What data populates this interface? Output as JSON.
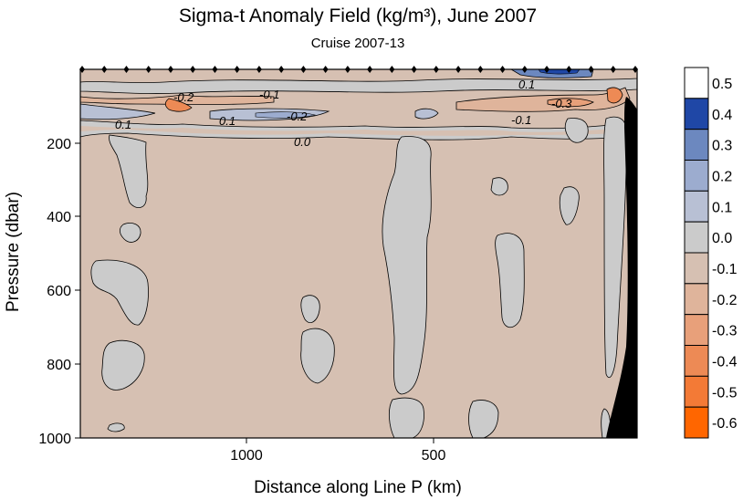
{
  "chart_data": {
    "type": "heatmap",
    "title": "Sigma-t Anomaly Field  (kg/m³),  June 2007",
    "subtitle": "Cruise 2007-13",
    "xlabel": "Distance along Line P  (km)",
    "ylabel": "Pressure  (dbar)",
    "x_ticks": [
      "1000",
      "500"
    ],
    "y_ticks": [
      "200",
      "400",
      "600",
      "800",
      "1000"
    ],
    "ylim": [
      0,
      1000
    ],
    "y_inverted": true,
    "colorbar": {
      "levels": [
        "0.5",
        "0.4",
        "0.3",
        "0.2",
        "0.1",
        "0.0",
        "-0.1",
        "-0.2",
        "-0.3",
        "-0.4",
        "-0.5",
        "-0.6"
      ],
      "colors": [
        "#ffffff",
        "#1f47a6",
        "#6c88bf",
        "#9caccf",
        "#b8c0d4",
        "#cbcbcb",
        "#d6c0b2",
        "#dfb49b",
        "#e8a07a",
        "#ed8a55",
        "#f37a36",
        "#ff6600"
      ]
    },
    "contour_labels": [
      "-0.2",
      "-0.1",
      "-0.1",
      "0.1",
      "0.1",
      "-0.2",
      "0.0",
      "0.1",
      "-0.3",
      "-0.1"
    ],
    "station_count": 26
  }
}
